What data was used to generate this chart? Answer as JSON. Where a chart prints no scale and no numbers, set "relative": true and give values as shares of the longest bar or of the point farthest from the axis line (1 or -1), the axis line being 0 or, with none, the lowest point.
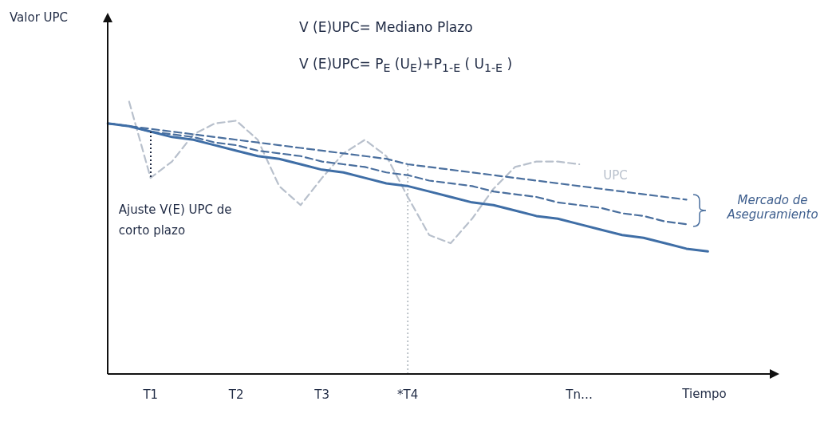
{
  "chart_data": {
    "type": "line",
    "relative": true,
    "xlabel": "Tiempo",
    "categories": [
      null,
      null,
      "T1",
      null,
      null,
      null,
      "T2",
      null,
      null,
      null,
      "T3",
      null,
      null,
      null,
      "*T4",
      null,
      null,
      null,
      null,
      null,
      null,
      null,
      "Tn…",
      null,
      null,
      null,
      null,
      null,
      null,
      null,
      null,
      null
    ],
    "series": [
      {
        "color": "#3f6ea6",
        "line_style": "solid",
        "values": [
          0.92,
          0.91,
          0.89,
          0.87,
          0.86,
          0.84,
          0.82,
          0.8,
          0.79,
          0.77,
          0.75,
          0.74,
          0.72,
          0.7,
          0.69,
          0.67,
          0.65,
          0.63,
          0.62,
          0.6,
          0.58,
          0.57,
          0.55,
          0.53,
          0.51,
          0.5,
          0.48,
          0.46,
          0.45,
          null,
          null,
          null
        ]
      },
      {
        "color": "#4a6f9e",
        "line_style": "dashed",
        "values": [
          0.92,
          0.91,
          0.9,
          0.89,
          0.88,
          0.87,
          0.86,
          0.85,
          0.84,
          0.83,
          0.82,
          0.81,
          0.8,
          0.79,
          0.77,
          0.76,
          0.75,
          0.74,
          0.73,
          0.72,
          0.71,
          0.7,
          0.69,
          0.68,
          0.67,
          0.66,
          0.65,
          0.64,
          null,
          null,
          null,
          null
        ]
      },
      {
        "color": "#4a6f9e",
        "line_style": "dashed",
        "values": [
          0.92,
          0.91,
          0.89,
          0.88,
          0.87,
          0.85,
          0.84,
          0.82,
          0.81,
          0.8,
          0.78,
          0.77,
          0.76,
          0.74,
          0.73,
          0.71,
          0.7,
          0.69,
          0.67,
          0.66,
          0.65,
          0.63,
          0.62,
          0.61,
          0.59,
          0.58,
          0.56,
          0.55,
          null,
          null,
          null,
          null
        ]
      },
      {
        "name": "UPC",
        "color": "#b8c0cc",
        "line_style": "dashed",
        "values": [
          null,
          1.0,
          0.72,
          0.78,
          0.88,
          0.92,
          0.93,
          0.86,
          0.69,
          0.62,
          0.72,
          0.81,
          0.86,
          0.8,
          0.65,
          0.51,
          0.48,
          0.57,
          0.68,
          0.76,
          0.78,
          0.78,
          0.77,
          null,
          null,
          null,
          null,
          null,
          null,
          null,
          null,
          null
        ]
      }
    ],
    "ref_lines": [
      {
        "axis": "x",
        "value": "*T4",
        "color": "#9aa3ad",
        "line_style": "dotted"
      }
    ],
    "annotations": [
      "Valor UPC",
      "V (E)UPC= Mediano Plazo",
      "V (E)UPC= P$_{E}$ (U$_{E}$)+P$_{1-E}$ ( U$_{1-E}$ )",
      "Ajuste V(E) UPC de corto plazo",
      "Mercado de Aseguramiento"
    ],
    "grid": false,
    "legend": false,
    "marker": "none"
  }
}
